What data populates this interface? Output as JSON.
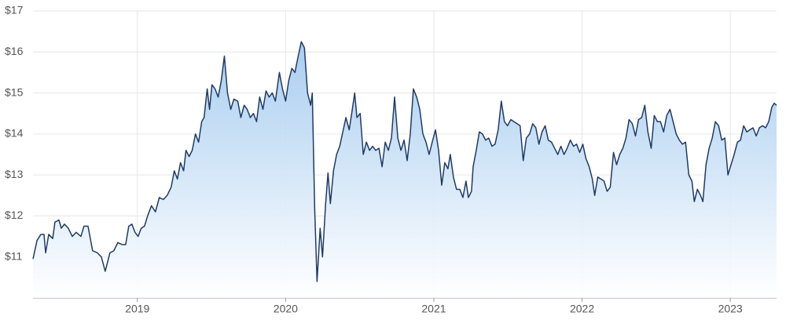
{
  "chart_data": {
    "type": "area",
    "xlim": [
      2018.296,
      2023.312
    ],
    "ylim": [
      10,
      17
    ],
    "xticks": [
      2019,
      2020,
      2021,
      2022,
      2023
    ],
    "yticks": [
      {
        "value": 11,
        "label": "$11"
      },
      {
        "value": 12,
        "label": "$12"
      },
      {
        "value": 13,
        "label": "$13"
      },
      {
        "value": 14,
        "label": "$14"
      },
      {
        "value": 15,
        "label": "$15"
      },
      {
        "value": 16,
        "label": "$16"
      },
      {
        "value": 17,
        "label": "$17"
      }
    ],
    "grid": true,
    "x": [
      2018.296,
      2018.323,
      2018.349,
      2018.37,
      2018.381,
      2018.402,
      2018.429,
      2018.444,
      2018.471,
      2018.487,
      2018.508,
      2018.534,
      2018.561,
      2018.587,
      2018.619,
      2018.64,
      2018.667,
      2018.698,
      2018.73,
      2018.757,
      2018.783,
      2018.815,
      2018.841,
      2018.868,
      2018.899,
      2018.921,
      2018.942,
      2018.963,
      2018.984,
      2019.005,
      2019.026,
      2019.048,
      2019.069,
      2019.095,
      2019.122,
      2019.148,
      2019.175,
      2019.201,
      2019.228,
      2019.249,
      2019.27,
      2019.291,
      2019.312,
      2019.328,
      2019.349,
      2019.37,
      2019.392,
      2019.413,
      2019.434,
      2019.45,
      2019.471,
      2019.487,
      2019.503,
      2019.524,
      2019.545,
      2019.566,
      2019.587,
      2019.608,
      2019.63,
      2019.651,
      2019.677,
      2019.698,
      2019.72,
      2019.741,
      2019.762,
      2019.783,
      2019.804,
      2019.825,
      2019.847,
      2019.868,
      2019.889,
      2019.91,
      2019.931,
      2019.958,
      2019.979,
      2020.0,
      2020.021,
      2020.042,
      2020.063,
      2020.085,
      2020.106,
      2020.127,
      2020.148,
      2020.169,
      2020.18,
      2020.196,
      2020.212,
      2020.233,
      2020.249,
      2020.27,
      2020.286,
      2020.302,
      2020.323,
      2020.344,
      2020.365,
      2020.386,
      2020.407,
      2020.429,
      2020.45,
      2020.466,
      2020.481,
      2020.503,
      2020.524,
      2020.545,
      2020.566,
      2020.587,
      2020.608,
      2020.63,
      2020.651,
      2020.672,
      2020.693,
      2020.714,
      2020.735,
      2020.757,
      2020.778,
      2020.799,
      2020.82,
      2020.841,
      2020.862,
      2020.884,
      2020.905,
      2020.926,
      2020.947,
      2020.968,
      2020.989,
      2021.011,
      2021.032,
      2021.053,
      2021.074,
      2021.095,
      2021.111,
      2021.132,
      2021.153,
      2021.175,
      2021.196,
      2021.217,
      2021.233,
      2021.254,
      2021.265,
      2021.286,
      2021.307,
      2021.328,
      2021.349,
      2021.37,
      2021.392,
      2021.413,
      2021.434,
      2021.455,
      2021.476,
      2021.497,
      2021.519,
      2021.54,
      2021.561,
      2021.582,
      2021.603,
      2021.624,
      2021.646,
      2021.667,
      2021.688,
      2021.709,
      2021.73,
      2021.751,
      2021.772,
      2021.794,
      2021.815,
      2021.836,
      2021.857,
      2021.878,
      2021.899,
      2021.921,
      2021.942,
      2021.963,
      2021.984,
      2022.005,
      2022.026,
      2022.048,
      2022.069,
      2022.085,
      2022.106,
      2022.127,
      2022.148,
      2022.169,
      2022.19,
      2022.212,
      2022.233,
      2022.254,
      2022.275,
      2022.296,
      2022.317,
      2022.339,
      2022.36,
      2022.381,
      2022.402,
      2022.423,
      2022.444,
      2022.466,
      2022.487,
      2022.508,
      2022.529,
      2022.55,
      2022.571,
      2022.593,
      2022.614,
      2022.635,
      2022.656,
      2022.677,
      2022.698,
      2022.72,
      2022.741,
      2022.757,
      2022.778,
      2022.799,
      2022.815,
      2022.836,
      2022.857,
      2022.878,
      2022.899,
      2022.921,
      2022.942,
      2022.963,
      2022.984,
      2023.005,
      2023.026,
      2023.048,
      2023.069,
      2023.09,
      2023.111,
      2023.132,
      2023.153,
      2023.175,
      2023.196,
      2023.217,
      2023.238,
      2023.259,
      2023.28,
      2023.296,
      2023.312
    ],
    "series": [
      {
        "color": "#1f3b66",
        "values": [
          10.95,
          11.4,
          11.55,
          11.55,
          11.1,
          11.55,
          11.45,
          11.85,
          11.9,
          11.7,
          11.8,
          11.7,
          11.5,
          11.6,
          11.5,
          11.75,
          11.75,
          11.15,
          11.1,
          11.0,
          10.65,
          11.1,
          11.15,
          11.35,
          11.3,
          11.3,
          11.75,
          11.8,
          11.6,
          11.5,
          11.7,
          11.75,
          12.0,
          12.25,
          12.1,
          12.45,
          12.4,
          12.5,
          12.7,
          13.1,
          12.9,
          13.3,
          13.1,
          13.6,
          13.45,
          13.6,
          14.0,
          13.8,
          14.3,
          14.4,
          15.1,
          14.6,
          15.2,
          15.1,
          14.9,
          15.3,
          15.9,
          15.0,
          14.6,
          14.85,
          14.8,
          14.4,
          14.7,
          14.6,
          14.4,
          14.5,
          14.3,
          14.9,
          14.6,
          15.05,
          14.9,
          15.0,
          14.8,
          15.5,
          15.1,
          14.8,
          15.3,
          15.6,
          15.5,
          15.9,
          16.25,
          16.1,
          15.0,
          14.7,
          15.0,
          12.2,
          10.4,
          11.7,
          11.0,
          12.3,
          13.05,
          12.3,
          13.1,
          13.5,
          13.7,
          14.05,
          14.4,
          14.1,
          14.6,
          15.0,
          14.4,
          14.5,
          13.5,
          13.8,
          13.6,
          13.7,
          13.6,
          13.65,
          13.2,
          13.8,
          13.6,
          13.9,
          14.9,
          13.9,
          13.6,
          13.85,
          13.35,
          14.0,
          15.1,
          14.9,
          14.6,
          14.0,
          13.8,
          13.5,
          13.8,
          14.1,
          13.6,
          12.75,
          13.3,
          13.15,
          13.5,
          12.95,
          12.65,
          12.65,
          12.45,
          12.85,
          12.45,
          12.6,
          13.2,
          13.6,
          14.05,
          14.0,
          13.85,
          13.9,
          13.7,
          13.75,
          14.1,
          14.8,
          14.3,
          14.2,
          14.35,
          14.3,
          14.25,
          14.2,
          13.35,
          13.9,
          14.0,
          14.25,
          14.15,
          13.75,
          14.05,
          14.2,
          13.85,
          13.8,
          13.65,
          13.5,
          13.7,
          13.5,
          13.65,
          13.85,
          13.7,
          13.75,
          13.55,
          13.75,
          13.4,
          13.2,
          12.9,
          12.5,
          12.95,
          12.9,
          12.85,
          12.6,
          12.7,
          13.55,
          13.25,
          13.5,
          13.65,
          13.9,
          14.35,
          14.25,
          13.95,
          14.35,
          14.4,
          14.7,
          14.05,
          13.65,
          14.45,
          14.3,
          14.3,
          14.05,
          14.45,
          14.6,
          14.3,
          14.0,
          13.85,
          13.75,
          13.8,
          13.0,
          12.85,
          12.35,
          12.65,
          12.5,
          12.35,
          13.25,
          13.65,
          13.9,
          14.3,
          14.2,
          13.85,
          13.9,
          13.0,
          13.25,
          13.5,
          13.8,
          13.85,
          14.2,
          14.05,
          14.1,
          14.15,
          13.95,
          14.15,
          14.2,
          14.15,
          14.3,
          14.65,
          14.75,
          14.7
        ]
      }
    ]
  }
}
